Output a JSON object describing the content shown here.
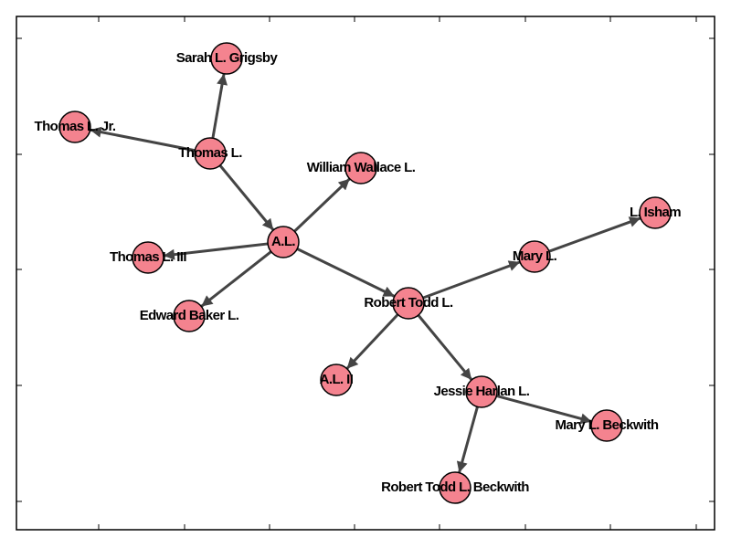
{
  "nodes": [
    {
      "label": "Sarah L. Grigsby"
    },
    {
      "label": "Thomas L. Jr."
    },
    {
      "label": "Thomas L."
    },
    {
      "label": "William Wallace L."
    },
    {
      "label": "A.L."
    },
    {
      "label": "Thomas L. III"
    },
    {
      "label": "Edward Baker L."
    },
    {
      "label": "Robert Todd L."
    },
    {
      "label": "Mary L."
    },
    {
      "label": "L. Isham"
    },
    {
      "label": "A.L. II"
    },
    {
      "label": "Jessie Harlan L."
    },
    {
      "label": "Mary L. Beckwith"
    },
    {
      "label": "Robert Todd L. Beckwith"
    }
  ]
}
